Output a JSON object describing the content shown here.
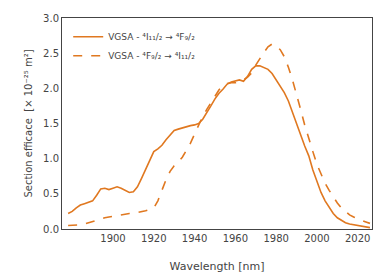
{
  "chart_data": {
    "type": "line",
    "xlabel": "Wavelength [nm]",
    "ylabel": "Section efficace  [× 10⁻²⁵ m²]",
    "xlim": [
      1875,
      2027
    ],
    "ylim": [
      0.0,
      3.0
    ],
    "xticks": [
      1900,
      1920,
      1940,
      1960,
      1980,
      2000,
      2020
    ],
    "yticks": [
      {
        "value": 0.0,
        "label": "0.0"
      },
      0.5,
      {
        "value": 1.0,
        "label": "1.0"
      },
      1.5,
      {
        "value": 2.0,
        "label": "2.0"
      },
      2.5,
      {
        "value": 3.0,
        "label": "3.0"
      }
    ],
    "grid": false,
    "legend": "upper left",
    "color": "#E07820",
    "series": [
      {
        "name": "VGSA - ⁴I₁₁/₂ → ⁴F₉/₂",
        "line_style": "solid",
        "x": [
          1878,
          1880,
          1882,
          1884,
          1886,
          1888,
          1890,
          1892,
          1894,
          1896,
          1898,
          1900,
          1902,
          1904,
          1906,
          1908,
          1910,
          1912,
          1914,
          1916,
          1918,
          1920,
          1922,
          1924,
          1926,
          1928,
          1930,
          1932,
          1934,
          1936,
          1938,
          1940,
          1942,
          1944,
          1946,
          1948,
          1950,
          1952,
          1954,
          1956,
          1958,
          1960,
          1962,
          1964,
          1966,
          1968,
          1970,
          1972,
          1974,
          1976,
          1978,
          1980,
          1982,
          1984,
          1986,
          1988,
          1990,
          1992,
          1994,
          1996,
          1998,
          2000,
          2002,
          2004,
          2006,
          2008,
          2010,
          2012,
          2014,
          2016,
          2018,
          2020,
          2022,
          2024,
          2026
        ],
        "values": [
          0.22,
          0.25,
          0.3,
          0.34,
          0.36,
          0.38,
          0.4,
          0.48,
          0.57,
          0.58,
          0.56,
          0.58,
          0.6,
          0.58,
          0.55,
          0.52,
          0.53,
          0.6,
          0.72,
          0.85,
          0.98,
          1.1,
          1.14,
          1.19,
          1.27,
          1.34,
          1.4,
          1.42,
          1.44,
          1.46,
          1.47,
          1.48,
          1.5,
          1.56,
          1.65,
          1.75,
          1.85,
          1.93,
          1.99,
          2.06,
          2.09,
          2.11,
          2.12,
          2.1,
          2.17,
          2.27,
          2.32,
          2.32,
          2.3,
          2.27,
          2.21,
          2.12,
          2.04,
          1.94,
          1.82,
          1.65,
          1.5,
          1.34,
          1.18,
          1.04,
          0.84,
          0.67,
          0.52,
          0.4,
          0.3,
          0.22,
          0.16,
          0.12,
          0.09,
          0.07,
          0.06,
          0.05,
          0.04,
          0.03,
          0.02
        ]
      },
      {
        "name": "VGSA - ⁴F₉/₂ → ⁴I₁₁/₂",
        "line_style": "dash",
        "x": [
          1878,
          1880,
          1882,
          1884,
          1886,
          1888,
          1890,
          1892,
          1894,
          1896,
          1898,
          1900,
          1902,
          1904,
          1906,
          1908,
          1910,
          1912,
          1914,
          1916,
          1918,
          1920,
          1922,
          1924,
          1926,
          1928,
          1930,
          1932,
          1934,
          1936,
          1938,
          1940,
          1942,
          1944,
          1946,
          1948,
          1950,
          1952,
          1954,
          1956,
          1958,
          1960,
          1962,
          1964,
          1966,
          1968,
          1970,
          1972,
          1974,
          1976,
          1978,
          1980,
          1982,
          1984,
          1986,
          1988,
          1990,
          1992,
          1994,
          1996,
          1998,
          2000,
          2002,
          2004,
          2006,
          2008,
          2010,
          2012,
          2014,
          2016,
          2018,
          2020,
          2022,
          2024,
          2026
        ],
        "values": [
          0.05,
          0.05,
          0.05,
          0.06,
          0.07,
          0.09,
          0.1,
          0.12,
          0.14,
          0.16,
          0.17,
          0.18,
          0.2,
          0.21,
          0.22,
          0.22,
          0.22,
          0.23,
          0.24,
          0.26,
          0.28,
          0.3,
          0.4,
          0.55,
          0.7,
          0.82,
          0.9,
          0.95,
          1.02,
          1.12,
          1.22,
          1.35,
          1.48,
          1.6,
          1.7,
          1.8,
          1.9,
          1.98,
          2.03,
          2.07,
          2.08,
          2.08,
          2.1,
          2.12,
          2.16,
          2.22,
          2.33,
          2.43,
          2.51,
          2.59,
          2.63,
          2.6,
          2.55,
          2.45,
          2.3,
          2.12,
          1.92,
          1.7,
          1.48,
          1.28,
          1.1,
          0.92,
          0.78,
          0.65,
          0.55,
          0.45,
          0.37,
          0.3,
          0.25,
          0.2,
          0.17,
          0.14,
          0.12,
          0.1,
          0.08
        ]
      }
    ]
  }
}
